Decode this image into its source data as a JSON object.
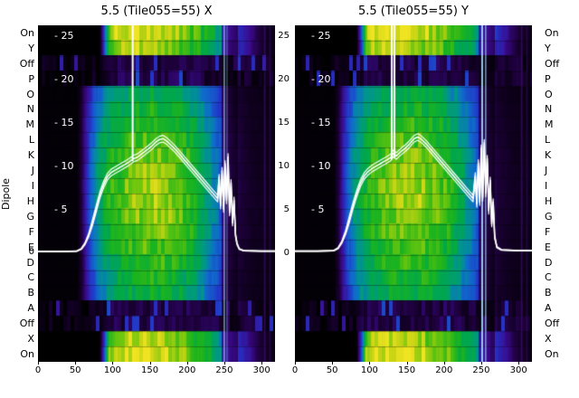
{
  "figure": {
    "ylabel": "Dipole",
    "dipole_labels": [
      "On",
      "Y",
      "Off",
      "P",
      "O",
      "N",
      "M",
      "L",
      "K",
      "J",
      "I",
      "H",
      "G",
      "F",
      "E",
      "D",
      "C",
      "B",
      "A",
      "Off",
      "X",
      "On"
    ],
    "inner_ytick_labels": [
      "- 25",
      "- 20",
      "- 15",
      "- 10",
      "- 5"
    ],
    "inner_ytick_values": [
      25,
      20,
      15,
      10,
      5
    ],
    "between_ytick_labels": [
      "25",
      "20",
      "15",
      "10",
      "5",
      "0"
    ],
    "between_ytick_values": [
      25,
      20,
      15,
      10,
      5,
      0
    ],
    "outer_zero_label": "0",
    "x_tick_labels": [
      "0",
      "50",
      "100",
      "150",
      "200",
      "250",
      "300"
    ],
    "x_tick_values": [
      0,
      50,
      100,
      150,
      200,
      250,
      300
    ]
  },
  "chart_data": {
    "type": "heatmap",
    "title": "5.5 (Tile055=55)",
    "ylabel": "Dipole",
    "x_range": [
      0,
      318
    ],
    "value_range": [
      0,
      26.3
    ],
    "y_ticks": [
      0,
      5,
      10,
      15,
      20,
      25
    ],
    "x_ticks": [
      0,
      50,
      100,
      150,
      200,
      250,
      300
    ],
    "rows": [
      "On",
      "Y",
      "Off",
      "P",
      "O",
      "N",
      "M",
      "L",
      "K",
      "J",
      "I",
      "H",
      "G",
      "F",
      "E",
      "D",
      "C",
      "B",
      "A",
      "Off",
      "X",
      "On"
    ],
    "row_types": [
      "on",
      "on",
      "noise",
      "noise",
      "grad",
      "grad",
      "grad",
      "grad",
      "grad",
      "grad",
      "grad",
      "grad",
      "grad",
      "grad",
      "grad",
      "grad",
      "grad",
      "grad",
      "noise",
      "noise",
      "on",
      "on"
    ],
    "grad_amps": [
      0.8,
      0.88,
      0.95,
      1.0,
      1.05,
      1.09,
      1.12,
      1.12,
      1.09,
      1.05,
      1.0,
      0.95,
      0.89,
      0.84
    ],
    "profiles": {
      "on": [
        [
          0,
          0.0
        ],
        [
          82,
          0.0
        ],
        [
          88,
          0.3
        ],
        [
          95,
          0.85
        ],
        [
          105,
          0.95
        ],
        [
          130,
          1.0
        ],
        [
          165,
          0.95
        ],
        [
          195,
          0.85
        ],
        [
          215,
          0.75
        ],
        [
          235,
          0.62
        ],
        [
          248,
          0.5
        ],
        [
          258,
          0.38
        ],
        [
          268,
          0.3
        ],
        [
          280,
          0.22
        ],
        [
          292,
          0.12
        ],
        [
          302,
          0.06
        ],
        [
          318,
          0.03
        ]
      ],
      "noise": [
        [
          0,
          0.02
        ],
        [
          80,
          0.03
        ],
        [
          95,
          0.1
        ],
        [
          150,
          0.09
        ],
        [
          200,
          0.1
        ],
        [
          255,
          0.07
        ],
        [
          300,
          0.06
        ],
        [
          318,
          0.04
        ]
      ],
      "grad": [
        [
          0,
          0.01
        ],
        [
          52,
          0.01
        ],
        [
          58,
          0.08
        ],
        [
          64,
          0.22
        ],
        [
          72,
          0.38
        ],
        [
          80,
          0.5
        ],
        [
          90,
          0.6
        ],
        [
          100,
          0.66
        ],
        [
          115,
          0.72
        ],
        [
          130,
          0.76
        ],
        [
          150,
          0.79
        ],
        [
          170,
          0.78
        ],
        [
          190,
          0.73
        ],
        [
          205,
          0.67
        ],
        [
          218,
          0.58
        ],
        [
          230,
          0.48
        ],
        [
          240,
          0.4
        ],
        [
          248,
          0.3
        ],
        [
          256,
          0.2
        ],
        [
          264,
          0.12
        ],
        [
          272,
          0.07
        ],
        [
          285,
          0.05
        ],
        [
          300,
          0.04
        ],
        [
          318,
          0.03
        ]
      ]
    },
    "colormap": [
      [
        0,
        "#000000"
      ],
      [
        0.08,
        "#1c0038"
      ],
      [
        0.18,
        "#3a0a8c"
      ],
      [
        0.3,
        "#2433c8"
      ],
      [
        0.42,
        "#0f6ccc"
      ],
      [
        0.52,
        "#00968c"
      ],
      [
        0.62,
        "#00a84a"
      ],
      [
        0.72,
        "#1db41d"
      ],
      [
        0.82,
        "#6cc60e"
      ],
      [
        0.92,
        "#c8d414"
      ],
      [
        1,
        "#f0e422"
      ]
    ],
    "rfi_band": [
      246,
      268
    ],
    "edge_lines": [
      [
        303,
        0.45
      ],
      [
        310,
        0.3
      ]
    ],
    "panels": [
      {
        "title": "5.5 (Tile055=55) X",
        "line": [
          [
            0,
            0.3
          ],
          [
            30,
            0.3
          ],
          [
            52,
            0.35
          ],
          [
            58,
            0.6
          ],
          [
            63,
            1.2
          ],
          [
            68,
            2.2
          ],
          [
            73,
            3.6
          ],
          [
            78,
            5.2
          ],
          [
            83,
            6.8
          ],
          [
            88,
            8.0
          ],
          [
            93,
            8.9
          ],
          [
            98,
            9.4
          ],
          [
            104,
            9.7
          ],
          [
            110,
            10.0
          ],
          [
            116,
            10.3
          ],
          [
            122,
            10.6
          ],
          [
            128,
            11.0
          ],
          [
            134,
            11.2
          ],
          [
            140,
            11.6
          ],
          [
            146,
            12.0
          ],
          [
            152,
            12.4
          ],
          [
            158,
            12.9
          ],
          [
            163,
            13.2
          ],
          [
            168,
            13.3
          ],
          [
            173,
            13.0
          ],
          [
            178,
            12.6
          ],
          [
            184,
            12.1
          ],
          [
            190,
            11.5
          ],
          [
            196,
            10.9
          ],
          [
            202,
            10.3
          ],
          [
            208,
            9.7
          ],
          [
            214,
            9.1
          ],
          [
            220,
            8.5
          ],
          [
            226,
            7.9
          ],
          [
            232,
            7.3
          ],
          [
            237,
            6.8
          ],
          [
            241,
            6.4
          ],
          [
            243,
            8.8
          ],
          [
            245,
            5.6
          ],
          [
            247,
            9.6
          ],
          [
            249,
            5.2
          ],
          [
            251,
            10.4
          ],
          [
            253,
            6.2
          ],
          [
            255,
            11.2
          ],
          [
            257,
            4.8
          ],
          [
            259,
            8.2
          ],
          [
            261,
            3.6
          ],
          [
            263,
            6.2
          ],
          [
            265,
            2.2
          ],
          [
            267,
            1.2
          ],
          [
            270,
            0.6
          ],
          [
            276,
            0.4
          ],
          [
            300,
            0.35
          ],
          [
            318,
            0.35
          ]
        ],
        "vspikes": [
          [
            127,
            10.8,
            26.3
          ]
        ],
        "rfi_lines": [
          [
            249,
            1.5,
            0.7
          ],
          [
            253,
            1,
            0.5
          ]
        ]
      },
      {
        "title": "5.5 (Tile055=55) Y",
        "line": [
          [
            0,
            0.35
          ],
          [
            30,
            0.35
          ],
          [
            52,
            0.4
          ],
          [
            58,
            0.7
          ],
          [
            63,
            1.4
          ],
          [
            68,
            2.5
          ],
          [
            73,
            4.0
          ],
          [
            78,
            5.6
          ],
          [
            83,
            7.0
          ],
          [
            88,
            8.2
          ],
          [
            93,
            9.0
          ],
          [
            98,
            9.5
          ],
          [
            104,
            9.9
          ],
          [
            110,
            10.2
          ],
          [
            116,
            10.5
          ],
          [
            122,
            10.8
          ],
          [
            128,
            11.1
          ],
          [
            132,
            11.6
          ],
          [
            136,
            11.3
          ],
          [
            142,
            11.8
          ],
          [
            148,
            12.2
          ],
          [
            154,
            12.7
          ],
          [
            160,
            13.3
          ],
          [
            165,
            13.5
          ],
          [
            170,
            13.2
          ],
          [
            176,
            12.7
          ],
          [
            182,
            12.1
          ],
          [
            188,
            11.5
          ],
          [
            194,
            10.9
          ],
          [
            200,
            10.3
          ],
          [
            206,
            9.7
          ],
          [
            212,
            9.1
          ],
          [
            218,
            8.5
          ],
          [
            224,
            7.9
          ],
          [
            230,
            7.3
          ],
          [
            235,
            6.8
          ],
          [
            239,
            6.4
          ],
          [
            242,
            9.0
          ],
          [
            244,
            5.8
          ],
          [
            246,
            10.5
          ],
          [
            248,
            6.0
          ],
          [
            250,
            12.2
          ],
          [
            252,
            6.5
          ],
          [
            254,
            12.8
          ],
          [
            256,
            7.0
          ],
          [
            258,
            11.0
          ],
          [
            260,
            5.0
          ],
          [
            262,
            8.5
          ],
          [
            264,
            3.5
          ],
          [
            266,
            6.0
          ],
          [
            268,
            2.0
          ],
          [
            271,
            0.8
          ],
          [
            277,
            0.5
          ],
          [
            300,
            0.4
          ],
          [
            318,
            0.4
          ]
        ],
        "vspikes": [
          [
            130,
            11.0,
            26.3
          ],
          [
            133.5,
            11.2,
            26.3
          ]
        ],
        "rfi_lines": [
          [
            250,
            2,
            0.9
          ],
          [
            255,
            1.5,
            0.7
          ]
        ]
      }
    ]
  }
}
